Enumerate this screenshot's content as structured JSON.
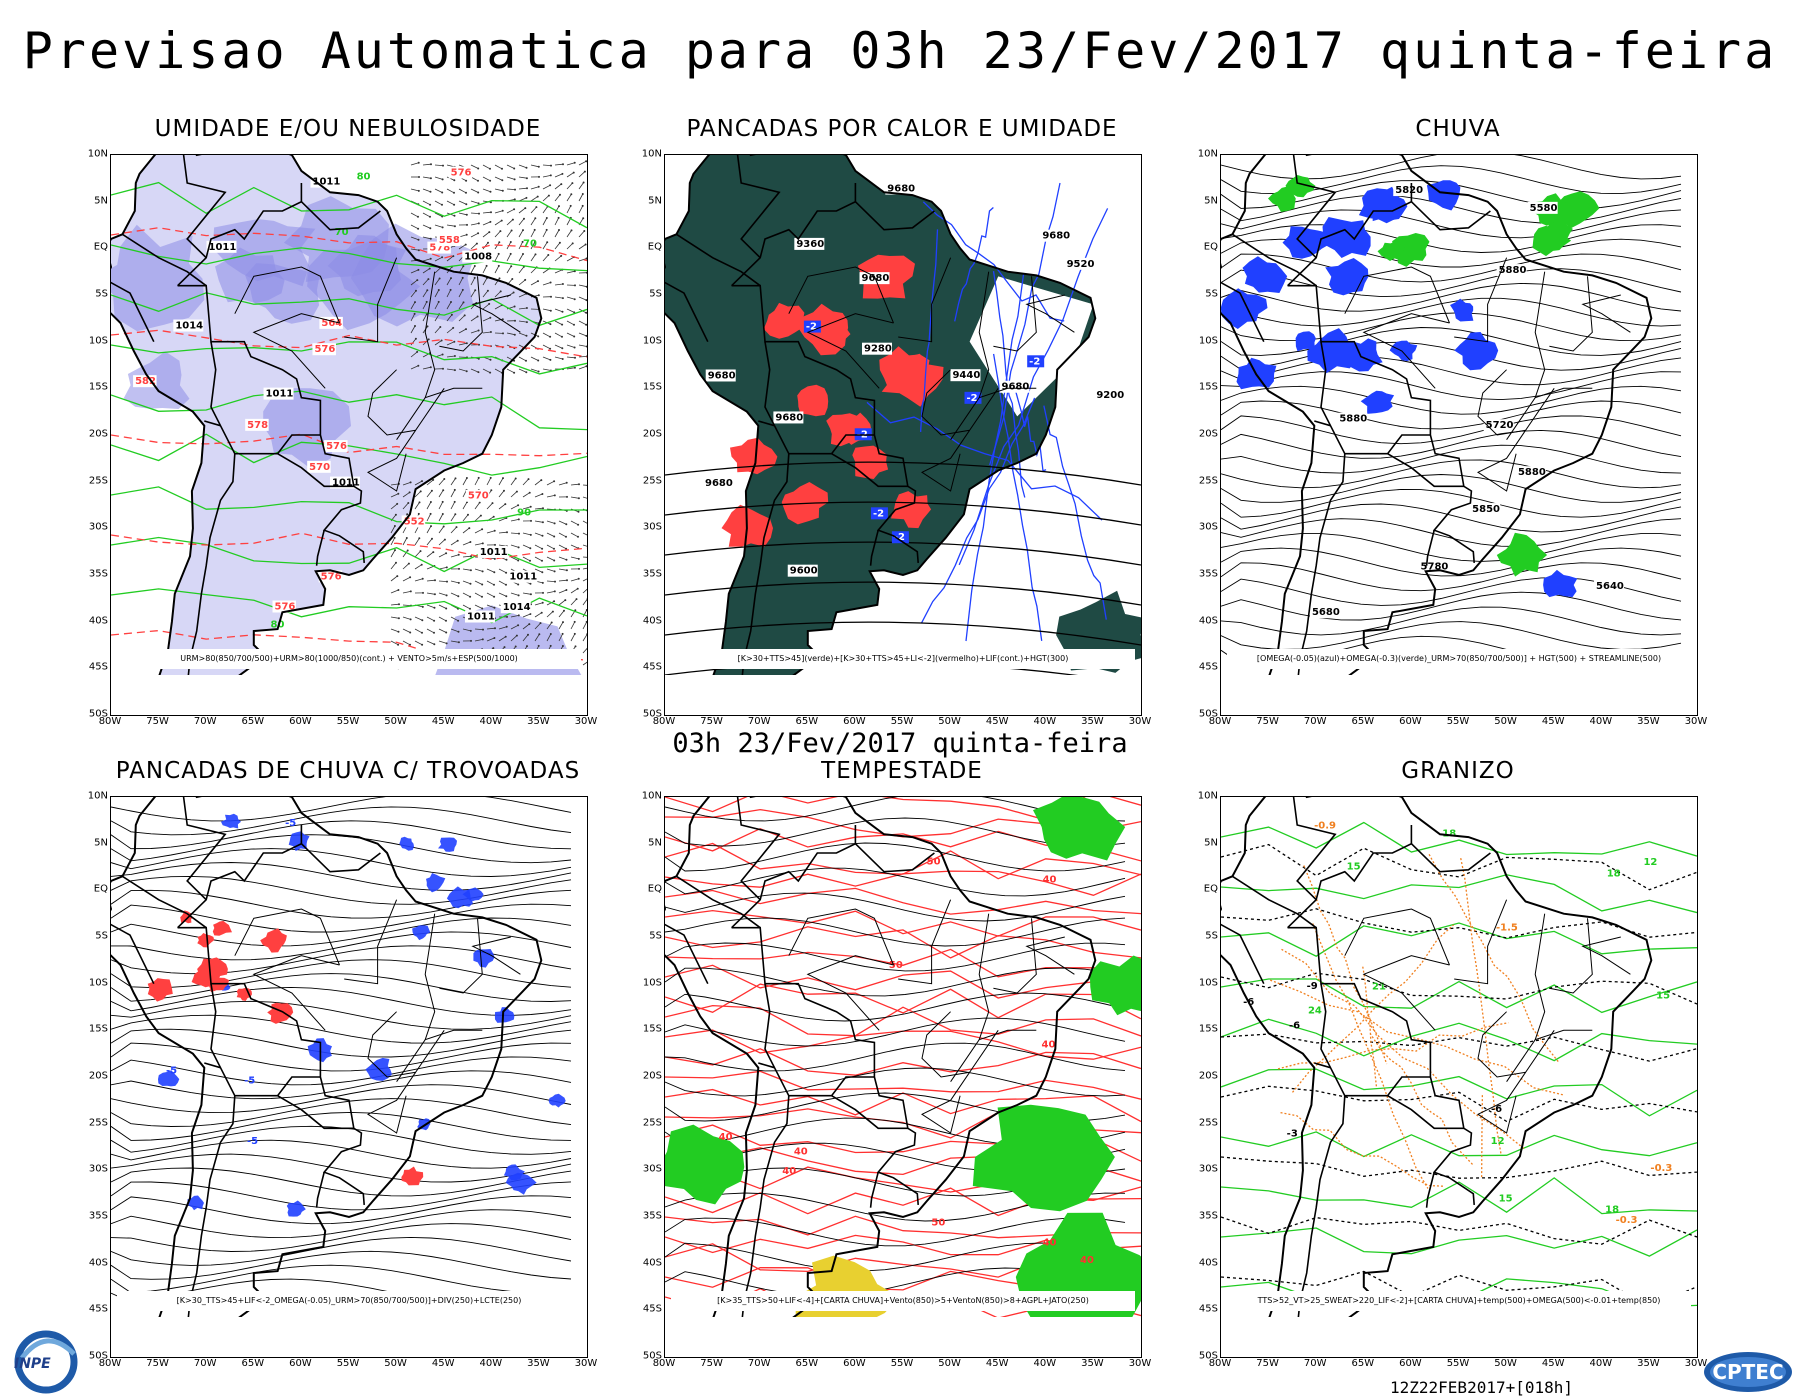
{
  "title": "Previsao Automatica  para 03h 23/Fev/2017 quinta-feira",
  "subtitle": "03h 23/Fev/2017 quinta-feira",
  "run_label": "12Z22FEB2017+[018h]",
  "lat_ticks": [
    "10N",
    "5N",
    "EQ",
    "5S",
    "10S",
    "15S",
    "20S",
    "25S",
    "30S",
    "35S",
    "40S",
    "45S",
    "50S"
  ],
  "lon_ticks": [
    "80W",
    "75W",
    "70W",
    "65W",
    "60W",
    "55W",
    "50W",
    "45W",
    "40W",
    "35W",
    "30W"
  ],
  "panels": [
    {
      "title": "UMIDADE E/OU NEBULOSIDADE",
      "legend": "URM>80(850/700/500)+URM>80(1000/850)(cont.) + VENTO>5m/s+ESP(500/1000)",
      "contour_labels": [
        "1011",
        "1011",
        "1011",
        "1011",
        "1011",
        "1014",
        "1011",
        "1008",
        "1011",
        "1014",
        "576",
        "576",
        "576",
        "576",
        "578",
        "576",
        "570",
        "582",
        "578",
        "570",
        "564",
        "558",
        "552",
        "80",
        "70",
        "90",
        "80",
        "70"
      ]
    },
    {
      "title": "PANCADAS POR CALOR E UMIDADE",
      "legend": "[K>30+TTS>45](verde)+[K>30+TTS>45+LI<-2](vermelho)+LIF(cont.)+HGT(300)",
      "contour_labels": [
        "9680",
        "9680",
        "9680",
        "9680",
        "9680",
        "9680",
        "9680",
        "9600",
        "9520",
        "9440",
        "9360",
        "9280",
        "9200",
        "-2",
        "-2",
        "-2",
        "-2",
        "-2",
        "-2"
      ]
    },
    {
      "title": "CHUVA",
      "legend": "[OMEGA(-0.05)(azul)+OMEGA(-0.3)(verde)_URM>70(850/700/500)] + HGT(500) + STREAMLINE(500)",
      "contour_labels": [
        "5880",
        "5880",
        "5880",
        "5850",
        "5820",
        "5780",
        "5720",
        "5680",
        "5640",
        "5580"
      ]
    },
    {
      "title": "PANCADAS DE CHUVA C/ TROVOADAS",
      "legend": "[K>30_TTS>45+LIF<-2_OMEGA(-0.05)_URM>70(850/700/500)]+DIV(250)+LCTE(250)",
      "contour_labels": [
        "-5",
        "-5",
        "-5",
        "-5"
      ]
    },
    {
      "title": "TEMPESTADE",
      "legend": "[K>35_TTS>50+LIF<-4]+[CARTA CHUVA]+Vento(850)>5+VentoN(850)>8+AGPL+JATO(250)",
      "contour_labels": [
        "40",
        "40",
        "40",
        "40",
        "40",
        "40",
        "50",
        "50",
        "50",
        "40"
      ]
    },
    {
      "title": "GRANIZO",
      "legend": "TTS>52_VT>25_SWEAT>220_LIF<-2]+[CARTA CHUVA]+temp(500)+OMEGA(500)<-0.01+temp(850)",
      "contour_labels": [
        "18",
        "18",
        "18",
        "15",
        "15",
        "15",
        "12",
        "12",
        "21",
        "24",
        "-6",
        "-6",
        "-6",
        "-9",
        "-3",
        "-0.3",
        "-0.3",
        "-0.9",
        "-1.5"
      ]
    }
  ],
  "logos": {
    "left": "INPE",
    "right": "CPTEC"
  },
  "colors": {
    "pancadas_green": "#1f4a44",
    "red": "#ff4040",
    "blue": "#2040ff",
    "green": "#22cc22",
    "purple_shade": "#8c8ce6",
    "yellow": "#e8d030",
    "orange": "#f08020"
  }
}
